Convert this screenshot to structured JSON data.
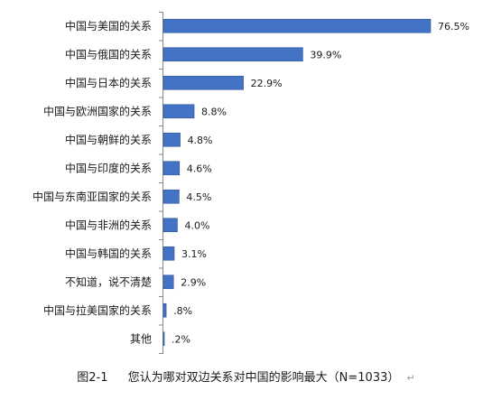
{
  "chart_data": {
    "type": "bar",
    "orientation": "horizontal",
    "categories": [
      "中国与美国的关系",
      "中国与俄国的关系",
      "中国与日本的关系",
      "中国与欧洲国家的关系",
      "中国与朝鲜的关系",
      "中国与印度的关系",
      "中国与东南亚国家的关系",
      "中国与非洲的关系",
      "中国与韩国的关系",
      "不知道，说不清楚",
      "中国与拉美国家的关系",
      "其他"
    ],
    "values": [
      76.5,
      39.9,
      22.9,
      8.8,
      4.8,
      4.6,
      4.5,
      4.0,
      3.1,
      2.9,
      0.8,
      0.2
    ],
    "value_labels": [
      "76.5%",
      "39.9%",
      "22.9%",
      "8.8%",
      "4.8%",
      "4.6%",
      "4.5%",
      "4.0%",
      "3.1%",
      "2.9%",
      ".8%",
      ".2%"
    ],
    "xlim": [
      0,
      80
    ],
    "grid": false,
    "legend": "none",
    "bar_color": "#4472c4",
    "bar_edge_color": "#2f5597"
  },
  "caption": {
    "figure_number": "图2-1",
    "text": "您认为哪对双边关系对中国的影响最大（N=1033）",
    "end_mark": "↵"
  }
}
